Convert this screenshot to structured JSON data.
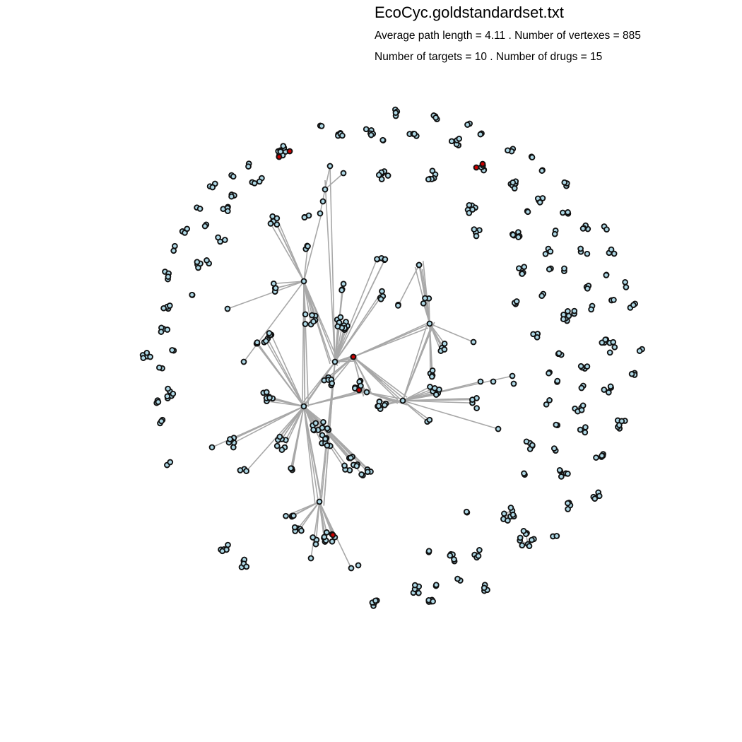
{
  "title": "EcoCyc.goldstandardset.txt",
  "subtitle_line1": "Average path length = 4.11 . Number of vertexes = 885",
  "subtitle_line2": "Number of targets = 10 . Number of drugs = 15",
  "colors": {
    "node_fill": "#add8e6",
    "node_stroke": "#111111",
    "target_fill": "#cc0000",
    "edge": "#a8a8a8",
    "background": "#ffffff"
  },
  "node_legend": {
    "light-blue": "vertex",
    "dark-red": "target"
  }
}
